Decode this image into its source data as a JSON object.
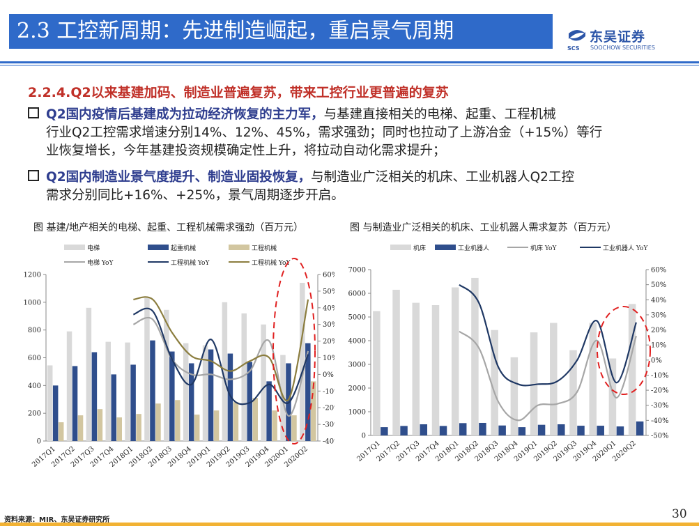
{
  "header": {
    "title": "2.3 工控新周期：先进制造崛起，重启景气周期",
    "logo_name": "东吴证券",
    "logo_sub": "SOOCHOW SECURITIES",
    "logo_badge": "SCS"
  },
  "subhead": "2.2.4.Q2以来基建加码、制造业普遍复苏，带来工控行业更普遍的复苏",
  "bullets": [
    {
      "strong": "Q2国内疫情后基建成为拉动经济恢复的主力军，",
      "line1_rest": "与基建直接相关的电梯、起重、工程机械",
      "line2": "行业Q2工控需求增速分别14%、12%、45%，需求强劲；同时也拉动了上游冶金（+15%）等行",
      "line3": "业恢复增长，今年基建投资规模确定性上升，将拉动自动化需求提升；"
    },
    {
      "strong": "Q2国内制造业景气度提升、制造业固投恢复，",
      "line1_rest": "与制造业广泛相关的机床、工业机器人Q2工控",
      "line2": "需求分别同比+16%、+25%，景气周期逐步开启。"
    }
  ],
  "chart_captions": {
    "left": "图  基建/地产相关的电梯、起重、工程机械需求强劲（百万元）",
    "right": "图  与制造业广泛相关的机床、工业机器人需求复苏（百万元）"
  },
  "source": "资料来源：MIR、东吴证券研究所",
  "page_number": "30",
  "colors": {
    "title_bar": "#2f6ac9",
    "light_gray_bar": "#d9d9d9",
    "dark_blue_bar": "#2f4e8c",
    "tan_bar": "#d2c6a0",
    "gray_line": "#a6a6a6",
    "navy_line": "#1f3864",
    "olive_line": "#8b7d3e",
    "highlight_ellipse": "#e02020",
    "subhead_red": "#c03028",
    "footer": "#f2b233"
  },
  "chart_data": [
    {
      "type": "bar",
      "title": "基建/地产相关的电梯、起重、工程机械需求强劲（百万元）",
      "categories": [
        "2017Q1",
        "2017Q2",
        "2017Q3",
        "2017Q4",
        "2018Q1",
        "2018Q2",
        "2018Q3",
        "2018Q4",
        "2019Q1",
        "2019Q2",
        "2019Q3",
        "2019Q4",
        "2020Q1",
        "2020Q2"
      ],
      "ylim": [
        0,
        1200
      ],
      "yticks": [
        "0",
        "200",
        "400",
        "600",
        "800",
        "1000",
        "1200"
      ],
      "y2lim": [
        -40,
        60
      ],
      "y2ticks": [
        "-40%",
        "-30%",
        "-20%",
        "-10%",
        "0%",
        "10%",
        "20%",
        "30%",
        "40%",
        "50%",
        "60%"
      ],
      "series": [
        {
          "name": "电梯",
          "kind": "bar",
          "axis": "left",
          "color": "#d9d9d9",
          "values": [
            545,
            790,
            960,
            715,
            710,
            1030,
            945,
            705,
            690,
            1000,
            920,
            840,
            620,
            1140
          ]
        },
        {
          "name": "起重机械",
          "kind": "bar",
          "axis": "left",
          "color": "#2f4e8c",
          "values": [
            400,
            540,
            640,
            480,
            550,
            725,
            645,
            560,
            660,
            630,
            570,
            430,
            560,
            705
          ]
        },
        {
          "name": "工程机械",
          "kind": "bar",
          "axis": "left",
          "color": "#d2c6a0",
          "values": [
            135,
            185,
            230,
            170,
            195,
            270,
            295,
            190,
            220,
            280,
            310,
            220,
            185,
            430
          ]
        },
        {
          "name": "电梯 YoY",
          "kind": "line",
          "axis": "right",
          "color": "#a6a6a6",
          "values": [
            null,
            null,
            null,
            null,
            30,
            33,
            9,
            0,
            0,
            -3,
            2,
            20,
            -25,
            14
          ]
        },
        {
          "name": "工程机械 YoY",
          "kind": "line",
          "axis": "right",
          "color": "#1f3864",
          "values": [
            null,
            null,
            null,
            null,
            36,
            38,
            9,
            -6,
            21,
            -13,
            -17,
            -6,
            -17,
            12
          ]
        },
        {
          "name": "工程机械 YoY",
          "kind": "line",
          "axis": "right",
          "color": "#8b7d3e",
          "values": [
            null,
            null,
            null,
            null,
            45,
            45,
            25,
            11,
            8,
            2,
            8,
            10,
            -15,
            45
          ]
        }
      ]
    },
    {
      "type": "bar",
      "title": "与制造业广泛相关的机床、工业机器人需求复苏（百万元）",
      "categories": [
        "2017Q1",
        "2017Q2",
        "2017Q3",
        "2017Q4",
        "2018Q1",
        "2018Q2",
        "2018Q3",
        "2018Q4",
        "2019Q1",
        "2019Q2",
        "2019Q3",
        "2019Q4",
        "2020Q1",
        "2020Q2"
      ],
      "ylim": [
        0,
        7000
      ],
      "yticks": [
        "0",
        "1000",
        "2000",
        "3000",
        "4000",
        "5000",
        "6000",
        "7000"
      ],
      "y2lim": [
        -50,
        60
      ],
      "y2ticks": [
        "-50%",
        "-40%",
        "-30%",
        "-20%",
        "-10%",
        "0%",
        "10%",
        "20%",
        "30%",
        "40%",
        "50%",
        "60%"
      ],
      "series": [
        {
          "name": "机床",
          "kind": "bar",
          "axis": "left",
          "color": "#d9d9d9",
          "values": [
            5250,
            6150,
            5600,
            5500,
            6250,
            6650,
            4450,
            3300,
            4350,
            4750,
            3600,
            4750,
            3250,
            5550
          ]
        },
        {
          "name": "工业机器人",
          "kind": "bar",
          "axis": "left",
          "color": "#2f4e8c",
          "values": [
            350,
            400,
            470,
            400,
            520,
            530,
            420,
            350,
            450,
            470,
            410,
            410,
            380,
            590
          ]
        },
        {
          "name": "机床 YoY",
          "kind": "line",
          "axis": "right",
          "color": "#a6a6a6",
          "values": [
            null,
            null,
            null,
            null,
            19,
            8,
            -28,
            -40,
            -30,
            -29,
            -21,
            13,
            -25,
            16
          ]
        },
        {
          "name": "工业机器人 YoY",
          "kind": "line",
          "axis": "right",
          "color": "#1f3864",
          "values": [
            null,
            null,
            null,
            null,
            50,
            38,
            -5,
            -16,
            -16,
            -14,
            0,
            26,
            -15,
            25
          ]
        }
      ]
    }
  ]
}
